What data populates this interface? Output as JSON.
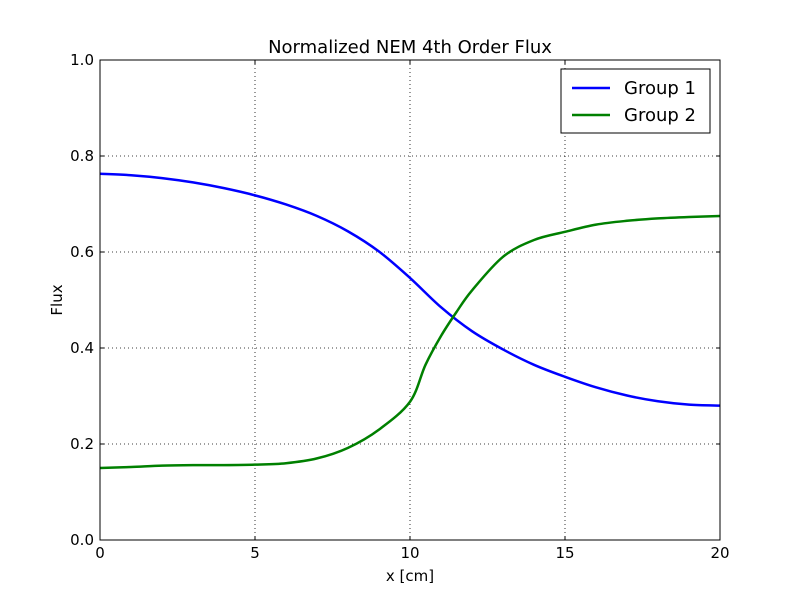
{
  "chart_data": {
    "type": "line",
    "title": "Normalized NEM 4th Order Flux",
    "xlabel": "x [cm]",
    "ylabel": "Flux",
    "xlim": [
      0,
      20
    ],
    "ylim": [
      0,
      1.0
    ],
    "xticks": [
      0,
      5,
      10,
      15,
      20
    ],
    "xtick_labels": [
      "0",
      "5",
      "10",
      "15",
      "20"
    ],
    "yticks": [
      0,
      0.2,
      0.4,
      0.6,
      0.8,
      1.0
    ],
    "ytick_labels": [
      "0.0",
      "0.2",
      "0.4",
      "0.6",
      "0.8",
      "1.0"
    ],
    "grid": true,
    "legend_position": "top-right",
    "series": [
      {
        "name": "Group 1",
        "color": "#0000ff",
        "x": [
          0,
          1,
          2,
          3,
          4,
          5,
          6,
          7,
          8,
          9,
          10,
          11,
          12,
          13,
          14,
          15,
          16,
          17,
          18,
          19,
          20
        ],
        "y": [
          0.763,
          0.76,
          0.754,
          0.745,
          0.733,
          0.718,
          0.699,
          0.675,
          0.643,
          0.601,
          0.546,
          0.485,
          0.435,
          0.397,
          0.365,
          0.34,
          0.318,
          0.301,
          0.289,
          0.282,
          0.28
        ]
      },
      {
        "name": "Group 2",
        "color": "#008000",
        "x": [
          0,
          1,
          2,
          3,
          4,
          5,
          6,
          7,
          8,
          9,
          10,
          10.5,
          11,
          11.5,
          12,
          13,
          14,
          15,
          16,
          17,
          18,
          19,
          20
        ],
        "y": [
          0.15,
          0.152,
          0.155,
          0.156,
          0.156,
          0.157,
          0.16,
          0.17,
          0.192,
          0.23,
          0.288,
          0.365,
          0.425,
          0.475,
          0.52,
          0.59,
          0.625,
          0.642,
          0.657,
          0.665,
          0.67,
          0.673,
          0.675
        ]
      }
    ]
  }
}
